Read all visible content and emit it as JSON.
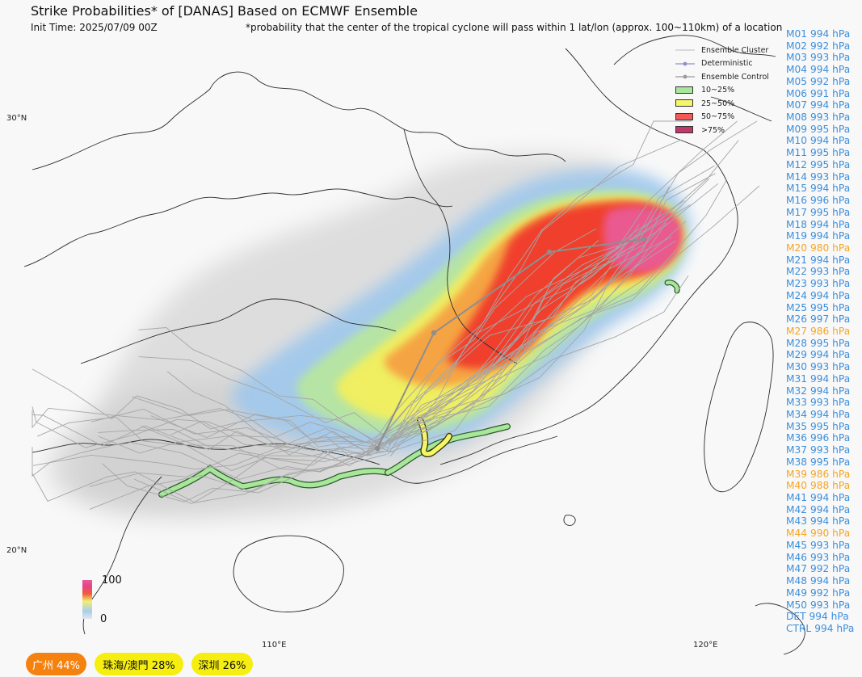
{
  "header": {
    "title": "Strike Probabilities* of [DANAS] Based on ECMWF Ensemble",
    "init_time": "Init Time: 2025/07/09 00Z",
    "note": "*probability that the center of the tropical cyclone will pass within 1 lat/lon (approx. 100~110km) of a location"
  },
  "axes": {
    "lat_labels": [
      "30°N",
      "20°N"
    ],
    "lon_labels": [
      "110°E",
      "120°E"
    ]
  },
  "legend": {
    "items": [
      {
        "label": "Ensemble Cluster",
        "kind": "line",
        "color": "#bdbdbd"
      },
      {
        "label": "Deterministic",
        "kind": "line-dot",
        "color": "#8f8fd0"
      },
      {
        "label": "Ensemble Control",
        "kind": "line-dot",
        "color": "#9a9a9a"
      },
      {
        "label": "10~25%",
        "kind": "box",
        "color": "#a8e69a"
      },
      {
        "label": "25~50%",
        "kind": "box",
        "color": "#f5f56a"
      },
      {
        "label": "50~75%",
        "kind": "box",
        "color": "#f25a55"
      },
      {
        "label": ">75%",
        "kind": "box",
        "color": "#c0396a"
      }
    ]
  },
  "colorbar": {
    "max_label": "100",
    "min_label": "0"
  },
  "members": [
    {
      "name": "M01",
      "pressure": "994 hPa",
      "color": "#3c8fdc"
    },
    {
      "name": "M02",
      "pressure": "992 hPa",
      "color": "#3c8fdc"
    },
    {
      "name": "M03",
      "pressure": "993 hPa",
      "color": "#3c8fdc"
    },
    {
      "name": "M04",
      "pressure": "994 hPa",
      "color": "#3c8fdc"
    },
    {
      "name": "M05",
      "pressure": "992 hPa",
      "color": "#3c8fdc"
    },
    {
      "name": "M06",
      "pressure": "991 hPa",
      "color": "#3c8fdc"
    },
    {
      "name": "M07",
      "pressure": "994 hPa",
      "color": "#3c8fdc"
    },
    {
      "name": "M08",
      "pressure": "993 hPa",
      "color": "#3c8fdc"
    },
    {
      "name": "M09",
      "pressure": "995 hPa",
      "color": "#3c8fdc"
    },
    {
      "name": "M10",
      "pressure": "994 hPa",
      "color": "#3c8fdc"
    },
    {
      "name": "M11",
      "pressure": "995 hPa",
      "color": "#3c8fdc"
    },
    {
      "name": "M12",
      "pressure": "995 hPa",
      "color": "#3c8fdc"
    },
    {
      "name": "M14",
      "pressure": "993 hPa",
      "color": "#3c8fdc"
    },
    {
      "name": "M15",
      "pressure": "994 hPa",
      "color": "#3c8fdc"
    },
    {
      "name": "M16",
      "pressure": "996 hPa",
      "color": "#3c8fdc"
    },
    {
      "name": "M17",
      "pressure": "995 hPa",
      "color": "#3c8fdc"
    },
    {
      "name": "M18",
      "pressure": "994 hPa",
      "color": "#3c8fdc"
    },
    {
      "name": "M19",
      "pressure": "994 hPa",
      "color": "#3c8fdc"
    },
    {
      "name": "M20",
      "pressure": "980 hPa",
      "color": "#f5a623"
    },
    {
      "name": "M21",
      "pressure": "994 hPa",
      "color": "#3c8fdc"
    },
    {
      "name": "M22",
      "pressure": "993 hPa",
      "color": "#3c8fdc"
    },
    {
      "name": "M23",
      "pressure": "993 hPa",
      "color": "#3c8fdc"
    },
    {
      "name": "M24",
      "pressure": "994 hPa",
      "color": "#3c8fdc"
    },
    {
      "name": "M25",
      "pressure": "995 hPa",
      "color": "#3c8fdc"
    },
    {
      "name": "M26",
      "pressure": "997 hPa",
      "color": "#3c8fdc"
    },
    {
      "name": "M27",
      "pressure": "986 hPa",
      "color": "#f5a623"
    },
    {
      "name": "M28",
      "pressure": "995 hPa",
      "color": "#3c8fdc"
    },
    {
      "name": "M29",
      "pressure": "994 hPa",
      "color": "#3c8fdc"
    },
    {
      "name": "M30",
      "pressure": "993 hPa",
      "color": "#3c8fdc"
    },
    {
      "name": "M31",
      "pressure": "994 hPa",
      "color": "#3c8fdc"
    },
    {
      "name": "M32",
      "pressure": "994 hPa",
      "color": "#3c8fdc"
    },
    {
      "name": "M33",
      "pressure": "993 hPa",
      "color": "#3c8fdc"
    },
    {
      "name": "M34",
      "pressure": "994 hPa",
      "color": "#3c8fdc"
    },
    {
      "name": "M35",
      "pressure": "995 hPa",
      "color": "#3c8fdc"
    },
    {
      "name": "M36",
      "pressure": "996 hPa",
      "color": "#3c8fdc"
    },
    {
      "name": "M37",
      "pressure": "993 hPa",
      "color": "#3c8fdc"
    },
    {
      "name": "M38",
      "pressure": "995 hPa",
      "color": "#3c8fdc"
    },
    {
      "name": "M39",
      "pressure": "986 hPa",
      "color": "#f5a623"
    },
    {
      "name": "M40",
      "pressure": "988 hPa",
      "color": "#f5a623"
    },
    {
      "name": "M41",
      "pressure": "994 hPa",
      "color": "#3c8fdc"
    },
    {
      "name": "M42",
      "pressure": "994 hPa",
      "color": "#3c8fdc"
    },
    {
      "name": "M43",
      "pressure": "994 hPa",
      "color": "#3c8fdc"
    },
    {
      "name": "M44",
      "pressure": "990 hPa",
      "color": "#f5a623"
    },
    {
      "name": "M45",
      "pressure": "993 hPa",
      "color": "#3c8fdc"
    },
    {
      "name": "M46",
      "pressure": "993 hPa",
      "color": "#3c8fdc"
    },
    {
      "name": "M47",
      "pressure": "992 hPa",
      "color": "#3c8fdc"
    },
    {
      "name": "M48",
      "pressure": "994 hPa",
      "color": "#3c8fdc"
    },
    {
      "name": "M49",
      "pressure": "992 hPa",
      "color": "#3c8fdc"
    },
    {
      "name": "M50",
      "pressure": "993 hPa",
      "color": "#3c8fdc"
    },
    {
      "name": "DET",
      "pressure": "994 hPa",
      "color": "#3c8fdc"
    },
    {
      "name": "CTRL",
      "pressure": "994 hPa",
      "color": "#3c8fdc"
    }
  ],
  "cities": [
    {
      "label": "广州 44%",
      "bg": "#f5820f",
      "fg": "#ffffff"
    },
    {
      "label": "珠海/澳門 28%",
      "bg": "#f5ee10",
      "fg": "#111111"
    },
    {
      "label": "深圳 26%",
      "bg": "#f5ee10",
      "fg": "#111111"
    }
  ]
}
